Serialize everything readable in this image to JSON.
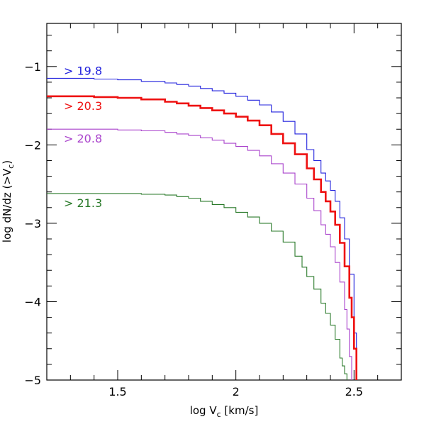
{
  "chart_data": {
    "type": "line",
    "xlabel": "log V",
    "xlabel_sub": "c",
    "xlabel_suffix": " [km/s]",
    "ylabel": "log dN/dz  (>V",
    "ylabel_sub": "c",
    "ylabel_suffix": ")",
    "xlim": [
      1.2,
      2.7
    ],
    "ylim": [
      -5,
      -0.45
    ],
    "x_ticks": [
      1.5,
      2,
      2.5
    ],
    "x_tick_labels": [
      "1.5",
      "2",
      "2.5"
    ],
    "y_ticks": [
      -1,
      -2,
      -3,
      -4,
      -5
    ],
    "y_tick_labels": [
      "−1",
      "−2",
      "−3",
      "−4",
      "−5"
    ],
    "x_minor_step": 0.1,
    "y_minor_step": 0.2,
    "grid": false,
    "series": [
      {
        "name": "> 19.8",
        "color": "#2222dd",
        "x": [
          1.2,
          1.3,
          1.4,
          1.5,
          1.6,
          1.7,
          1.75,
          1.8,
          1.85,
          1.9,
          1.95,
          2.0,
          2.05,
          2.1,
          2.15,
          2.2,
          2.25,
          2.3,
          2.33,
          2.36,
          2.38,
          2.4,
          2.42,
          2.44,
          2.46,
          2.48,
          2.5,
          2.51
        ],
        "y": [
          -1.15,
          -1.15,
          -1.16,
          -1.17,
          -1.19,
          -1.21,
          -1.23,
          -1.25,
          -1.28,
          -1.31,
          -1.34,
          -1.38,
          -1.43,
          -1.49,
          -1.58,
          -1.7,
          -1.86,
          -2.06,
          -2.2,
          -2.36,
          -2.46,
          -2.58,
          -2.72,
          -2.93,
          -3.2,
          -3.65,
          -4.4,
          -5.0
        ]
      },
      {
        "name": "> 20.3",
        "color": "#ee1111",
        "x": [
          1.2,
          1.3,
          1.4,
          1.5,
          1.6,
          1.7,
          1.75,
          1.8,
          1.85,
          1.9,
          1.95,
          2.0,
          2.05,
          2.1,
          2.15,
          2.2,
          2.25,
          2.3,
          2.33,
          2.36,
          2.38,
          2.4,
          2.42,
          2.44,
          2.46,
          2.48,
          2.49,
          2.5,
          2.51
        ],
        "y": [
          -1.38,
          -1.38,
          -1.39,
          -1.4,
          -1.42,
          -1.45,
          -1.47,
          -1.5,
          -1.53,
          -1.56,
          -1.6,
          -1.64,
          -1.69,
          -1.75,
          -1.86,
          -1.98,
          -2.12,
          -2.3,
          -2.44,
          -2.6,
          -2.72,
          -2.85,
          -3.02,
          -3.25,
          -3.55,
          -3.95,
          -4.2,
          -4.6,
          -5.0
        ]
      },
      {
        "name": "> 20.8",
        "color": "#aa44cc",
        "x": [
          1.2,
          1.3,
          1.4,
          1.5,
          1.6,
          1.7,
          1.75,
          1.8,
          1.85,
          1.9,
          1.95,
          2.0,
          2.05,
          2.1,
          2.15,
          2.2,
          2.25,
          2.3,
          2.33,
          2.36,
          2.38,
          2.4,
          2.42,
          2.44,
          2.46,
          2.47,
          2.48,
          2.49
        ],
        "y": [
          -1.8,
          -1.8,
          -1.8,
          -1.81,
          -1.82,
          -1.84,
          -1.86,
          -1.88,
          -1.91,
          -1.94,
          -1.98,
          -2.02,
          -2.07,
          -2.14,
          -2.24,
          -2.36,
          -2.5,
          -2.68,
          -2.84,
          -3.02,
          -3.14,
          -3.3,
          -3.5,
          -3.75,
          -4.1,
          -4.35,
          -4.7,
          -5.0
        ]
      },
      {
        "name": "> 21.3",
        "color": "#2a7a2a",
        "x": [
          1.2,
          1.3,
          1.4,
          1.5,
          1.6,
          1.7,
          1.75,
          1.8,
          1.85,
          1.9,
          1.95,
          2.0,
          2.05,
          2.1,
          2.15,
          2.2,
          2.25,
          2.28,
          2.3,
          2.33,
          2.36,
          2.38,
          2.4,
          2.42,
          2.44,
          2.45,
          2.46,
          2.47
        ],
        "y": [
          -2.62,
          -2.62,
          -2.62,
          -2.62,
          -2.63,
          -2.64,
          -2.66,
          -2.68,
          -2.72,
          -2.76,
          -2.8,
          -2.86,
          -2.92,
          -3.0,
          -3.1,
          -3.24,
          -3.42,
          -3.56,
          -3.68,
          -3.84,
          -4.02,
          -4.15,
          -4.3,
          -4.48,
          -4.72,
          -4.82,
          -4.92,
          -5.0
        ]
      }
    ]
  }
}
